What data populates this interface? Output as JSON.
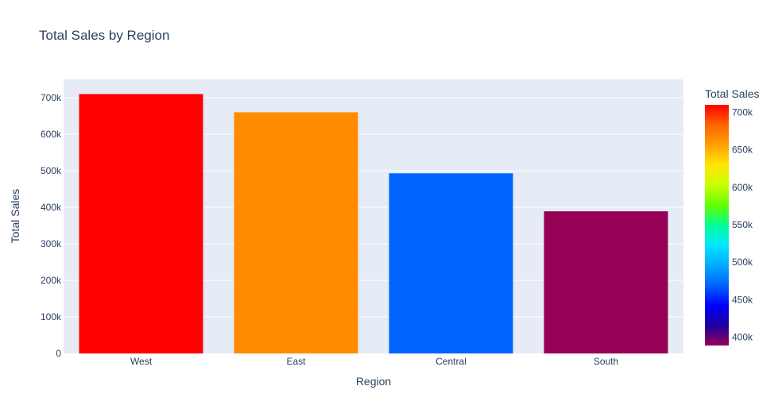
{
  "chart_data": {
    "type": "bar",
    "title": "Total Sales by Region",
    "xlabel": "Region",
    "ylabel": "Total Sales",
    "categories": [
      "West",
      "East",
      "Central",
      "South"
    ],
    "values": [
      710000,
      660000,
      493000,
      389000
    ],
    "ylim": [
      0,
      750000
    ],
    "yticks": [
      0,
      100000,
      200000,
      300000,
      400000,
      500000,
      600000,
      700000
    ],
    "ytick_labels": [
      "0",
      "100k",
      "200k",
      "300k",
      "400k",
      "500k",
      "600k",
      "700k"
    ],
    "bar_colors": [
      "#ff0000",
      "#ff8c00",
      "#0064ff",
      "#960055"
    ],
    "grid": true,
    "plot_background": "#e5ecf6",
    "colorbar": {
      "title": "Total Sales",
      "range": [
        389000,
        710000
      ],
      "ticks": [
        400000,
        450000,
        500000,
        550000,
        600000,
        650000,
        700000
      ],
      "tick_labels": [
        "400k",
        "450k",
        "500k",
        "550k",
        "600k",
        "650k",
        "700k"
      ],
      "colorscale": [
        "#960055",
        "#1e00a0",
        "#0000ff",
        "#0064ff",
        "#00aaff",
        "#00e6ff",
        "#00ff96",
        "#64ff00",
        "#c8ff00",
        "#ffe600",
        "#ffa000",
        "#ff6400",
        "#ff0000"
      ]
    }
  }
}
